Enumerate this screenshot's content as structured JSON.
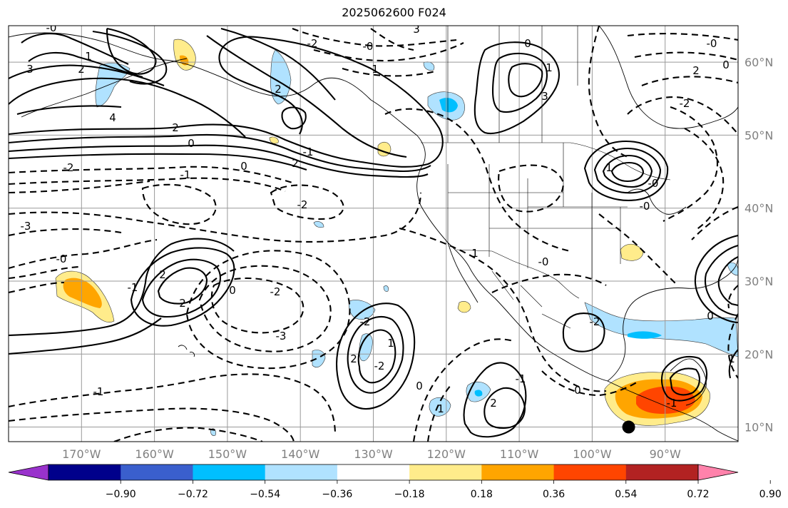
{
  "title": "2025062600 F024",
  "map": {
    "lon_range": [
      -180,
      -80
    ],
    "lat_range": [
      8,
      65
    ],
    "lon_ticks": [
      "170°W",
      "160°W",
      "150°W",
      "140°W",
      "130°W",
      "120°W",
      "110°W",
      "100°W",
      "90°W"
    ],
    "lat_ticks": [
      "60°N",
      "50°N",
      "40°N",
      "30°N",
      "20°N",
      "10°N"
    ],
    "grid": true,
    "contour_labels": [
      "-0",
      "1",
      "3",
      "2",
      "4",
      "2",
      "0",
      "-2",
      "-1",
      "0",
      "2",
      "-1",
      "-0",
      "1",
      "2",
      "3",
      "-2",
      "-2",
      "-3",
      "-0",
      "-2",
      "-3",
      "2",
      "-1",
      "2",
      "0",
      "1",
      "2",
      "-2",
      "-2",
      "-1",
      "1",
      "2",
      "-1",
      "0",
      "1",
      "-0",
      "0",
      "-2",
      "0",
      "1",
      "-1",
      "-0",
      "0",
      "2",
      "-2",
      "3",
      "0",
      "-0",
      "1",
      "-0",
      "1"
    ],
    "marker": {
      "lon": -95,
      "lat": 10,
      "color": "#000000"
    }
  },
  "colorbar": {
    "colors": [
      "#9932cc",
      "#00008b",
      "#3a5fcd",
      "#00bfff",
      "#b0e2ff",
      "#ffffff",
      "#ffec8b",
      "#ffa500",
      "#ff4500",
      "#b22222",
      "#ff82ab"
    ],
    "tick_labels": [
      "−0.90",
      "−0.72",
      "−0.54",
      "−0.36",
      "−0.18",
      "0.18",
      "0.36",
      "0.54",
      "0.72",
      "0.90"
    ]
  }
}
